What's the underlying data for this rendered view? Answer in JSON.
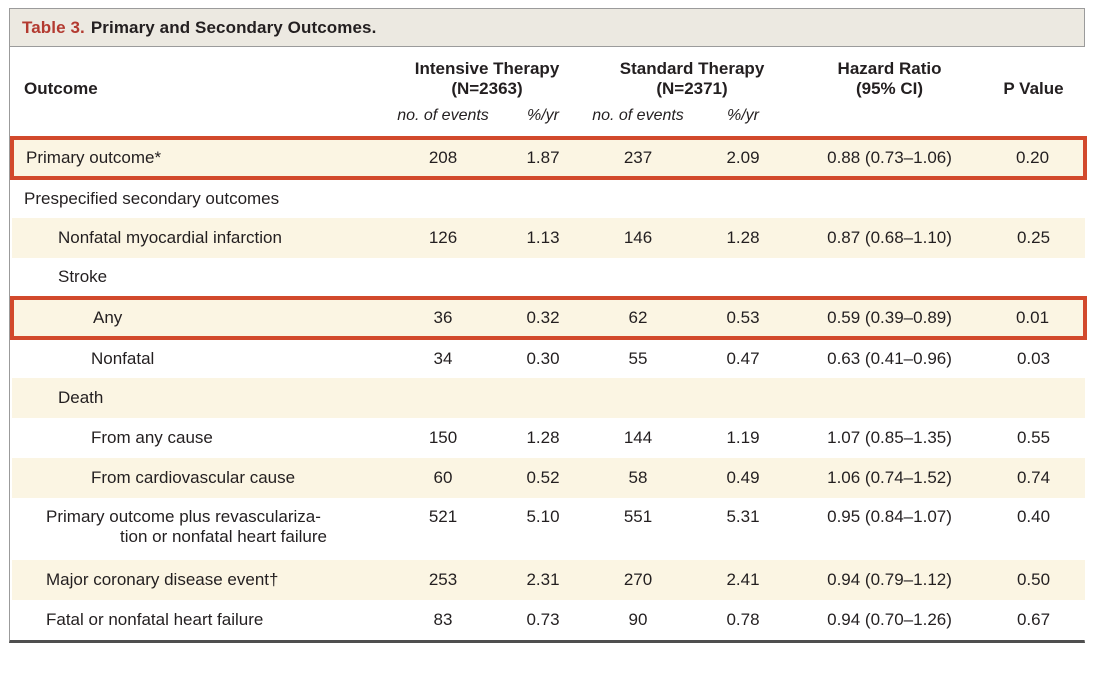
{
  "title": {
    "table_number": "Table 3.",
    "table_caption": "Primary and Secondary Outcomes."
  },
  "header": {
    "outcome": "Outcome",
    "intensive_line1": "Intensive Therapy",
    "intensive_line2": "(N=2363)",
    "standard_line1": "Standard Therapy",
    "standard_line2": "(N=2371)",
    "hazard_line1": "Hazard Ratio",
    "hazard_line2": "(95% CI)",
    "p_value": "P Value",
    "sub_events": "no. of events",
    "sub_rate": "%/yr"
  },
  "colors": {
    "nejm_red": "#b33a30",
    "highlight_red": "#d2492c",
    "row_cream": "#fbf5e3",
    "title_bar": "#ece9e1"
  },
  "rows": [
    {
      "label": "Primary outcome*",
      "indent": 0,
      "highlight": true,
      "events_int": "208",
      "rate_int": "1.87",
      "events_std": "237",
      "rate_std": "2.09",
      "hazard_ratio": "0.88 (0.73–1.06)",
      "p_value": "0.20"
    },
    {
      "label": "Prespecified secondary outcomes",
      "indent": 0,
      "events_int": "",
      "rate_int": "",
      "events_std": "",
      "rate_std": "",
      "hazard_ratio": "",
      "p_value": ""
    },
    {
      "label": "Nonfatal myocardial infarction",
      "indent": 1,
      "events_int": "126",
      "rate_int": "1.13",
      "events_std": "146",
      "rate_std": "1.28",
      "hazard_ratio": "0.87 (0.68–1.10)",
      "p_value": "0.25"
    },
    {
      "label": "Stroke",
      "indent": 1,
      "events_int": "",
      "rate_int": "",
      "events_std": "",
      "rate_std": "",
      "hazard_ratio": "",
      "p_value": ""
    },
    {
      "label": "Any",
      "indent": 2,
      "highlight": true,
      "events_int": "36",
      "rate_int": "0.32",
      "events_std": "62",
      "rate_std": "0.53",
      "hazard_ratio": "0.59 (0.39–0.89)",
      "p_value": "0.01"
    },
    {
      "label": "Nonfatal",
      "indent": 2,
      "events_int": "34",
      "rate_int": "0.30",
      "events_std": "55",
      "rate_std": "0.47",
      "hazard_ratio": "0.63 (0.41–0.96)",
      "p_value": "0.03"
    },
    {
      "label": "Death",
      "indent": 1,
      "events_int": "",
      "rate_int": "",
      "events_std": "",
      "rate_std": "",
      "hazard_ratio": "",
      "p_value": ""
    },
    {
      "label": "From any cause",
      "indent": 2,
      "events_int": "150",
      "rate_int": "1.28",
      "events_std": "144",
      "rate_std": "1.19",
      "hazard_ratio": "1.07 (0.85–1.35)",
      "p_value": "0.55"
    },
    {
      "label": "From cardiovascular cause",
      "indent": 2,
      "events_int": "60",
      "rate_int": "0.52",
      "events_std": "58",
      "rate_std": "0.49",
      "hazard_ratio": "1.06 (0.74–1.52)",
      "p_value": "0.74"
    },
    {
      "label": "Primary outcome plus revasculariza-",
      "label_cont": "tion or nonfatal heart failure",
      "indent": 1,
      "hang": true,
      "events_int": "521",
      "rate_int": "5.10",
      "events_std": "551",
      "rate_std": "5.31",
      "hazard_ratio": "0.95 (0.84–1.07)",
      "p_value": "0.40"
    },
    {
      "label": "Major coronary disease event†",
      "indent": 1,
      "hang": true,
      "events_int": "253",
      "rate_int": "2.31",
      "events_std": "270",
      "rate_std": "2.41",
      "hazard_ratio": "0.94 (0.79–1.12)",
      "p_value": "0.50"
    },
    {
      "label": "Fatal or nonfatal heart failure",
      "indent": 1,
      "hang": true,
      "events_int": "83",
      "rate_int": "0.73",
      "events_std": "90",
      "rate_std": "0.78",
      "hazard_ratio": "0.94 (0.70–1.26)",
      "p_value": "0.67"
    }
  ]
}
